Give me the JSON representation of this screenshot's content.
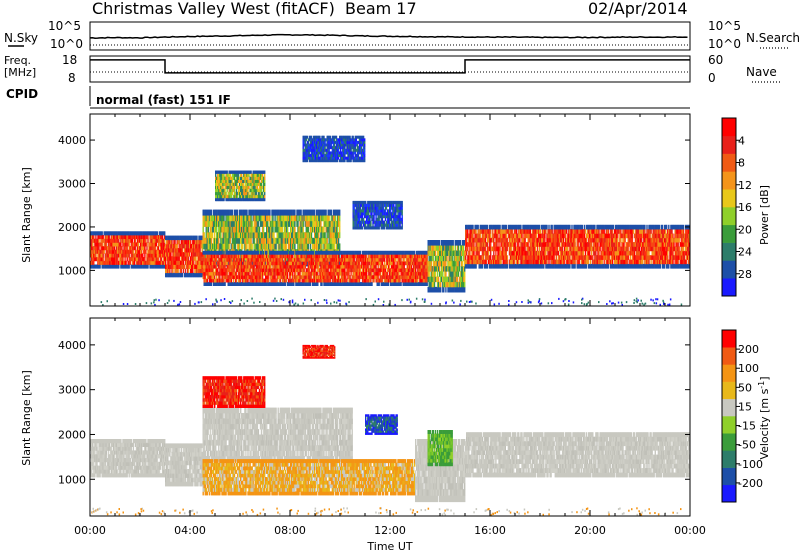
{
  "header": {
    "station": "Christmas Valley West (fitACF)",
    "beam": "Beam 17",
    "date": "02/Apr/2014"
  },
  "strip": {
    "nsky_label": "N.Sky",
    "nsearch_label": "N.Search",
    "nsky_ticks": [
      "10^5",
      "10^0"
    ],
    "nsearch_ticks": [
      "10^5",
      "10^0"
    ],
    "freq_label": "Freq.",
    "freq_unit": "[MHz]",
    "freq_ticks": [
      "18",
      "8"
    ],
    "nave_label": "Nave",
    "nave_ticks": [
      "60",
      "0"
    ],
    "cpid_label": "CPID",
    "cpid_text": "normal (fast) 151 IF"
  },
  "chart_data": [
    {
      "type": "heatmap",
      "panel": "power",
      "ylabel": "Slant Range [km]",
      "y_ticks": [
        "1000",
        "2000",
        "3000",
        "4000"
      ],
      "ylim": [
        180,
        4600
      ],
      "xlim": [
        0,
        24
      ],
      "colorbar_label": "Power [dB]",
      "colorbar_ticks": [
        "4",
        "8",
        "12",
        "16",
        "20",
        "24",
        "28"
      ],
      "colorbar_colors": [
        "#1a1aff",
        "#1d4fa8",
        "#2d7d6a",
        "#3a9c3a",
        "#8fcf2a",
        "#e8c81a",
        "#f4941a",
        "#f05a14",
        "#e8201a",
        "#ff0000"
      ],
      "regions": [
        {
          "t0": 0.0,
          "t1": 3.0,
          "r0": 1050,
          "r1": 1900,
          "level": "high"
        },
        {
          "t0": 3.0,
          "t1": 4.5,
          "r0": 850,
          "r1": 1800,
          "level": "high"
        },
        {
          "t0": 4.5,
          "t1": 10.0,
          "r0": 1100,
          "r1": 2400,
          "level": "mid"
        },
        {
          "t0": 4.5,
          "t1": 13.5,
          "r0": 650,
          "r1": 1450,
          "level": "high"
        },
        {
          "t0": 13.5,
          "t1": 15.0,
          "r0": 500,
          "r1": 1700,
          "level": "mid"
        },
        {
          "t0": 15.0,
          "t1": 24.0,
          "r0": 1050,
          "r1": 2050,
          "level": "high"
        },
        {
          "t0": 5.0,
          "t1": 7.0,
          "r0": 2600,
          "r1": 3300,
          "level": "mid"
        },
        {
          "t0": 8.5,
          "t1": 11.0,
          "r0": 3500,
          "r1": 4100,
          "level": "low"
        },
        {
          "t0": 10.5,
          "t1": 12.5,
          "r0": 1950,
          "r1": 2600,
          "level": "low"
        }
      ]
    },
    {
      "type": "heatmap",
      "panel": "velocity",
      "ylabel": "Slant Range [km]",
      "y_ticks": [
        "1000",
        "2000",
        "3000",
        "4000"
      ],
      "ylim": [
        180,
        4600
      ],
      "xlim": [
        0,
        24
      ],
      "xlabel": "Time UT",
      "x_ticks": [
        "00:00",
        "04:00",
        "08:00",
        "12:00",
        "16:00",
        "20:00",
        "00:00"
      ],
      "colorbar_label": "Velocity [m s",
      "colorbar_label_sup": "-1",
      "colorbar_label_end": "]",
      "colorbar_ticks": [
        "200",
        "100",
        "50",
        "15",
        "-15",
        "-50",
        "-100",
        "-200"
      ],
      "colorbar_colors": [
        "#1a1aff",
        "#1d4fa8",
        "#2d7d6a",
        "#3a9c3a",
        "#8fcf2a",
        "#c8c8c0",
        "#e8b81a",
        "#f49414",
        "#f05a14",
        "#ff0000"
      ],
      "regions": [
        {
          "t0": 0.0,
          "t1": 3.0,
          "r0": 1050,
          "r1": 1900,
          "level": "ground"
        },
        {
          "t0": 3.0,
          "t1": 4.5,
          "r0": 850,
          "r1": 1800,
          "level": "ground"
        },
        {
          "t0": 4.5,
          "t1": 10.5,
          "r0": 1400,
          "r1": 2600,
          "level": "ground"
        },
        {
          "t0": 4.5,
          "t1": 13.0,
          "r0": 650,
          "r1": 1450,
          "level": "orange"
        },
        {
          "t0": 13.0,
          "t1": 15.0,
          "r0": 500,
          "r1": 1900,
          "level": "ground"
        },
        {
          "t0": 13.5,
          "t1": 14.5,
          "r0": 1300,
          "r1": 2100,
          "level": "green"
        },
        {
          "t0": 15.0,
          "t1": 24.0,
          "r0": 1050,
          "r1": 2050,
          "level": "ground"
        },
        {
          "t0": 4.5,
          "t1": 7.0,
          "r0": 2600,
          "r1": 3300,
          "level": "red"
        },
        {
          "t0": 8.5,
          "t1": 9.8,
          "r0": 3700,
          "r1": 4000,
          "level": "red"
        },
        {
          "t0": 11.0,
          "t1": 12.3,
          "r0": 2000,
          "r1": 2450,
          "level": "blue"
        }
      ]
    }
  ],
  "series_strip": {
    "nsky_trace": [
      0.72,
      0.74,
      0.73,
      0.78,
      0.82,
      0.85,
      0.88,
      0.92,
      0.94,
      0.93,
      0.9,
      0.86,
      0.84,
      0.82,
      0.8,
      0.79,
      0.78,
      0.77,
      0.76,
      0.75,
      0.76,
      0.77,
      0.78,
      0.78,
      0.79
    ],
    "freq_steps": [
      {
        "t0": 0.0,
        "t1": 3.0,
        "f": 16.5
      },
      {
        "t0": 3.0,
        "t1": 15.0,
        "f": 11.5
      },
      {
        "t0": 15.0,
        "t1": 24.0,
        "f": 16.5
      }
    ]
  }
}
